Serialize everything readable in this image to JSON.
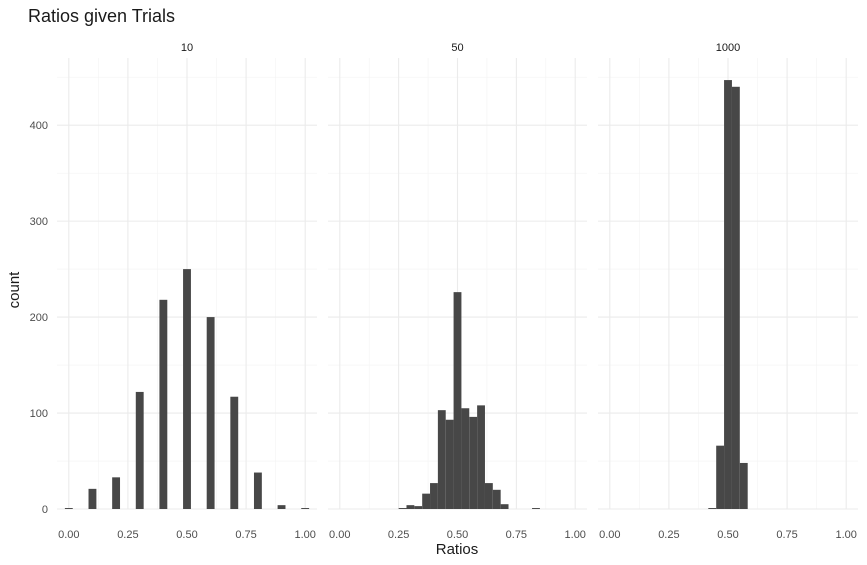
{
  "chart_data": {
    "type": "bar",
    "title": "Ratios given Trials",
    "xlabel": "Ratios",
    "ylabel": "count",
    "xlim": [
      -0.05,
      1.05
    ],
    "ylim": [
      0,
      470
    ],
    "x_ticks": [
      "0.00",
      "0.25",
      "0.50",
      "0.75",
      "1.00"
    ],
    "y_ticks": [
      "0",
      "100",
      "200",
      "300",
      "400"
    ],
    "grid": true,
    "legend": "none",
    "bar_color": "#474747",
    "bin_width": 0.0333,
    "facets": [
      {
        "label": "10",
        "x": [
          0.0,
          0.1,
          0.2,
          0.3,
          0.4,
          0.5,
          0.6,
          0.7,
          0.8,
          0.9,
          1.0
        ],
        "counts": [
          1,
          21,
          33,
          122,
          218,
          250,
          200,
          117,
          38,
          4,
          1
        ]
      },
      {
        "label": "50",
        "x": [
          0.2667,
          0.3,
          0.3333,
          0.3667,
          0.4,
          0.4333,
          0.4667,
          0.5,
          0.5333,
          0.5667,
          0.6,
          0.6333,
          0.6667,
          0.7,
          0.8333
        ],
        "counts": [
          1,
          4,
          3,
          16,
          27,
          103,
          93,
          226,
          105,
          96,
          108,
          27,
          20,
          5,
          1
        ]
      },
      {
        "label": "1000",
        "x": [
          0.4333,
          0.4667,
          0.5,
          0.5333,
          0.5667
        ],
        "counts": [
          1,
          66,
          447,
          440,
          48
        ]
      }
    ]
  }
}
